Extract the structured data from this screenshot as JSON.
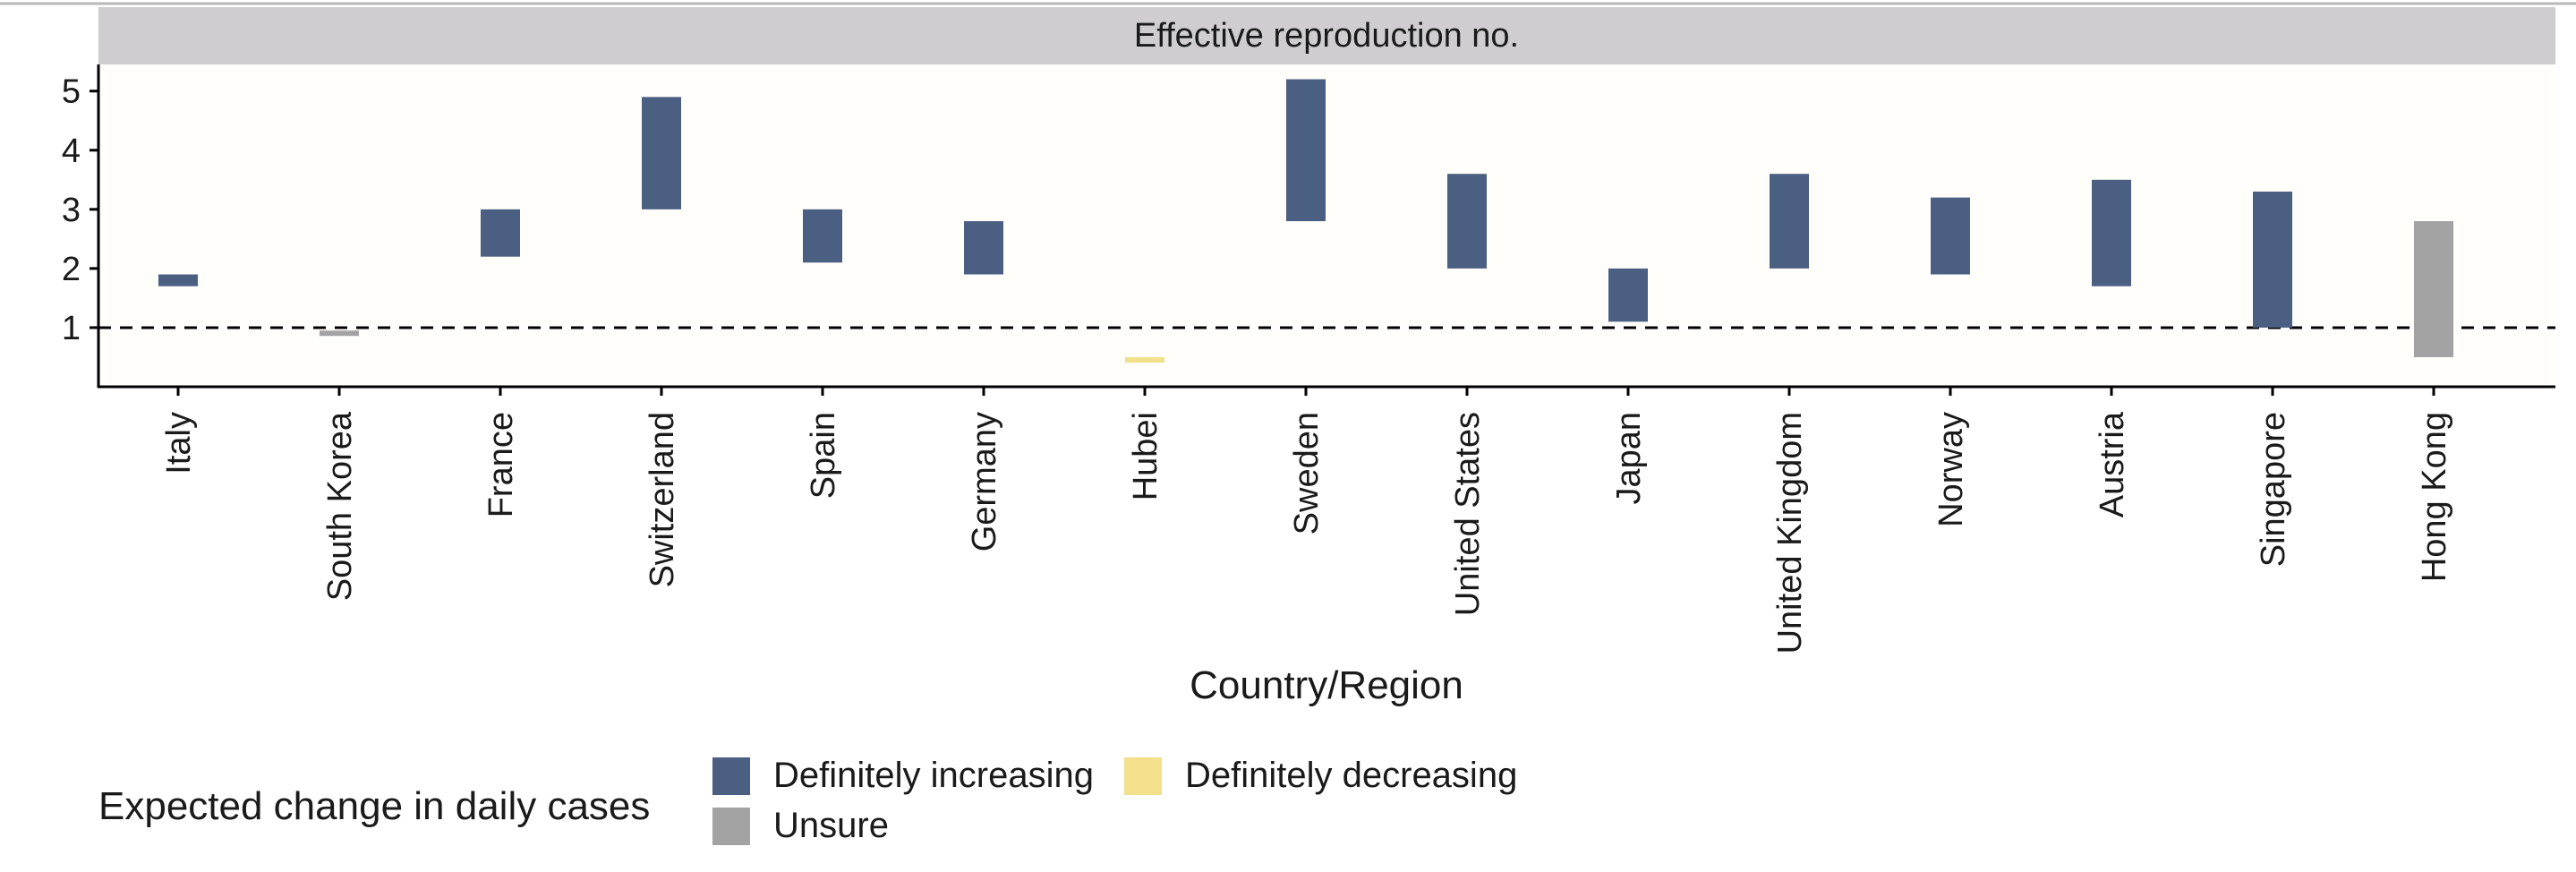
{
  "chart_data": {
    "type": "bar",
    "subtype": "floating-range",
    "panel_title": "Effective reproduction no.",
    "xlabel": "Country/Region",
    "ylabel": "",
    "ylim": [
      0.0,
      5.45
    ],
    "yticks": [
      1,
      2,
      3,
      4,
      5
    ],
    "reference_line": {
      "y": 1,
      "style": "dashed"
    },
    "categories": [
      "Italy",
      "South Korea",
      "France",
      "Switzerland",
      "Spain",
      "Germany",
      "Hubei",
      "Sweden",
      "United States",
      "Japan",
      "United Kingdom",
      "Norway",
      "Austria",
      "Singapore",
      "Hong Kong"
    ],
    "ranges": [
      {
        "low": 1.7,
        "high": 1.9,
        "status": "increasing"
      },
      {
        "low": 0.9,
        "high": 0.95,
        "status": "unsure"
      },
      {
        "low": 2.2,
        "high": 3.0,
        "status": "increasing"
      },
      {
        "low": 3.0,
        "high": 4.9,
        "status": "increasing"
      },
      {
        "low": 2.1,
        "high": 3.0,
        "status": "increasing"
      },
      {
        "low": 1.9,
        "high": 2.8,
        "status": "increasing"
      },
      {
        "low": 0.42,
        "high": 0.5,
        "status": "decreasing"
      },
      {
        "low": 2.8,
        "high": 5.2,
        "status": "increasing"
      },
      {
        "low": 2.0,
        "high": 3.6,
        "status": "increasing"
      },
      {
        "low": 1.1,
        "high": 2.0,
        "status": "increasing"
      },
      {
        "low": 2.0,
        "high": 3.6,
        "status": "increasing"
      },
      {
        "low": 1.9,
        "high": 3.2,
        "status": "increasing"
      },
      {
        "low": 1.7,
        "high": 3.5,
        "status": "increasing"
      },
      {
        "low": 1.0,
        "high": 3.3,
        "status": "increasing"
      },
      {
        "low": 0.5,
        "high": 2.8,
        "status": "unsure"
      }
    ],
    "legend": {
      "title": "Expected change in daily cases",
      "placement": "bottom-left",
      "items": [
        {
          "key": "increasing",
          "label": "Definitely increasing",
          "color": "#4a5f82"
        },
        {
          "key": "decreasing",
          "label": "Definitely decreasing",
          "color": "#f2e08a"
        },
        {
          "key": "unsure",
          "label": "Unsure",
          "color": "#a3a3a3"
        }
      ]
    },
    "colors": {
      "panel_strip": "#cfcdd0",
      "panel_background": "#fffefb"
    }
  }
}
